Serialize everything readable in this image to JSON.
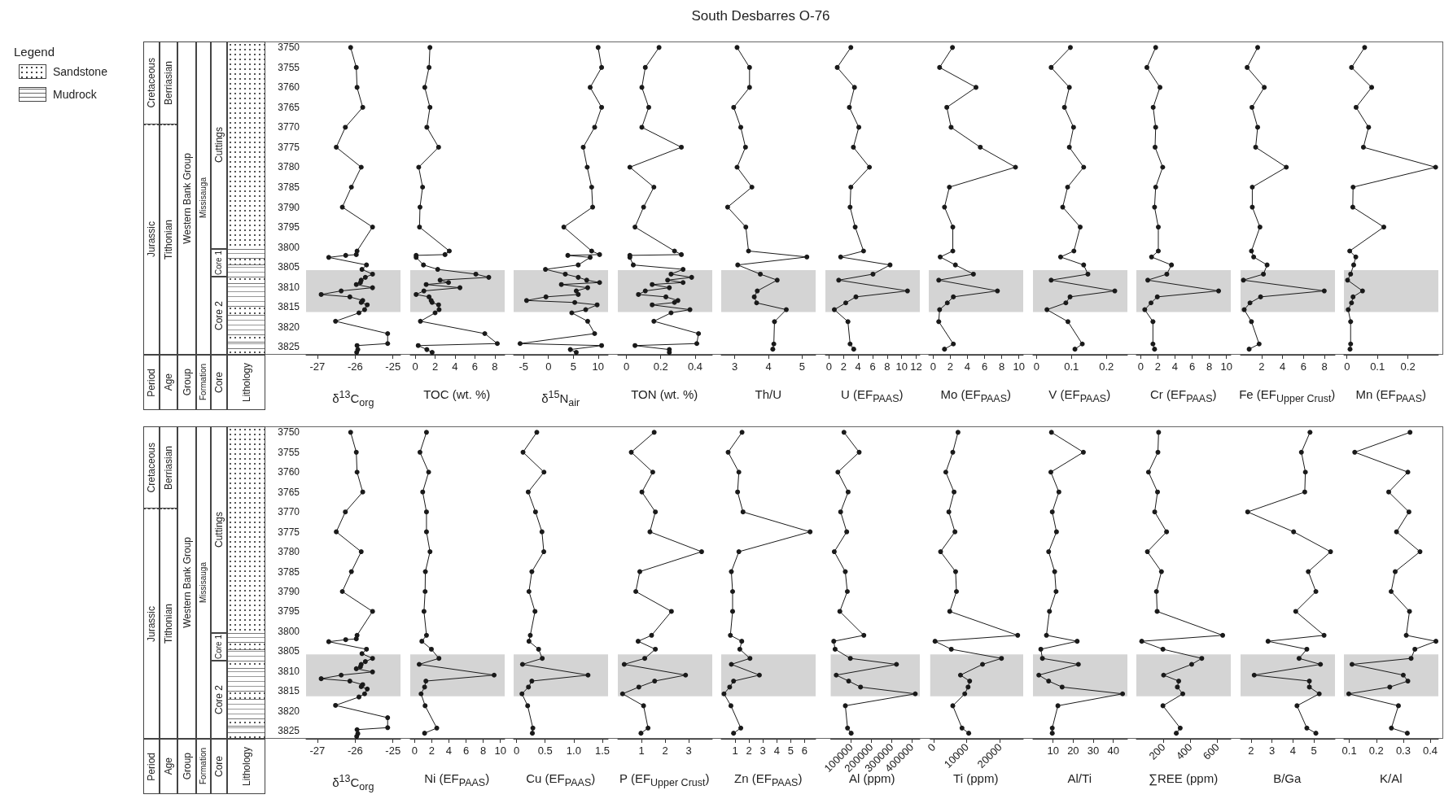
{
  "chart_data": [
    {
      "type": "other",
      "title": "South Desbarres O-76"
    },
    {
      "type": "other",
      "title": "Legend",
      "annotations": [
        "Sandstone",
        "Mudrock"
      ]
    },
    {
      "type": "other",
      "annotations": [
        "Period",
        "Age",
        "Group",
        "Formation",
        "Core",
        "Lithology",
        "Cretaceous",
        "Jurassic",
        "Berriasian",
        "Tithonian",
        "Western Bank Group",
        "Missisauga",
        "Cuttings",
        "Core 1",
        "Core 2"
      ]
    },
    {
      "type": "line",
      "xlabel": "δ$^{13}$C$_{org}$",
      "color": "#1a1a1a",
      "marker": "circle",
      "line_style": "solid",
      "xlim": [
        -27.3,
        -24.8
      ],
      "xticks": [
        -27,
        -26,
        -25
      ],
      "ylim": [
        3827,
        3748.5
      ],
      "yticks": [
        3750,
        3755,
        3760,
        3765,
        3770,
        3775,
        3780,
        3785,
        3790,
        3795,
        3800,
        3805,
        3810,
        3815,
        3820,
        3825
      ],
      "bands": [
        {
          "axis": "y",
          "from": 3805.8,
          "to": 3816.3,
          "color": "#d4d4d4"
        }
      ],
      "x": [
        -26.12,
        -25.97,
        -25.95,
        -25.8,
        -26.26,
        -26.5,
        -25.84,
        -26.1,
        -26.34,
        -25.54,
        -25.95,
        -25.97,
        -26.25,
        -26.7,
        -25.7,
        -25.82,
        -25.54,
        -25.73,
        -25.84,
        -25.86,
        -25.97,
        -25.54,
        -26.37,
        -26.9,
        -26.14,
        -25.8,
        -25.84,
        -25.68,
        -25.75,
        -25.9,
        -26.52,
        -25.14,
        -25.14,
        -25.95,
        -25.93,
        -25.96
      ],
      "values": [
        3750,
        3755,
        3760,
        3765,
        3770,
        3775,
        3780,
        3785,
        3790,
        3795,
        3801,
        3801.9,
        3802.1,
        3802.6,
        3804.5,
        3805.6,
        3806.8,
        3807.6,
        3808.3,
        3808.9,
        3809.4,
        3810.2,
        3811,
        3811.9,
        3812.5,
        3813.4,
        3813.9,
        3814.5,
        3815.7,
        3816.5,
        3818.6,
        3821.7,
        3824.2,
        3824.7,
        3825.7,
        3826.4
      ]
    },
    {
      "type": "line",
      "xlabel": "TOC (wt. %)",
      "color": "#1a1a1a",
      "marker": "circle",
      "line_style": "solid",
      "tick_labels": "x",
      "xlim": [
        -0.5,
        9
      ],
      "xticks": [
        0,
        2,
        4,
        6,
        8
      ],
      "ylim": [
        3827,
        3748.5
      ],
      "yticks": [
        3750,
        3755,
        3760,
        3765,
        3770,
        3775,
        3780,
        3785,
        3790,
        3795,
        3800,
        3805,
        3810,
        3815,
        3820,
        3825
      ],
      "bands": [
        {
          "axis": "y",
          "from": 3805.8,
          "to": 3816.3,
          "color": "#d4d4d4"
        }
      ],
      "x": [
        1.48,
        1.39,
        0.96,
        1.48,
        1.17,
        2.35,
        0.35,
        0.74,
        0.48,
        0.43,
        3.43,
        3.0,
        0.09,
        0.09,
        0.83,
        2.26,
        6.1,
        7.4,
        2.5,
        3.35,
        1.1,
        4.5,
        0.87,
        0.09,
        1.39,
        1.6,
        1.7,
        2.35,
        2.4,
        2.0,
        0.52,
        7.0,
        8.26,
        0.3,
        1.17,
        1.7
      ],
      "values": [
        3750,
        3755,
        3760,
        3765,
        3770,
        3775,
        3780,
        3785,
        3790,
        3795,
        3801,
        3801.9,
        3802.1,
        3802.6,
        3804.5,
        3805.6,
        3806.8,
        3807.6,
        3808.3,
        3808.9,
        3809.4,
        3810.2,
        3811,
        3811.9,
        3812.5,
        3813.4,
        3813.9,
        3814.5,
        3815.7,
        3816.5,
        3818.6,
        3821.7,
        3824.2,
        3824.7,
        3825.7,
        3826.4
      ]
    },
    {
      "type": "line",
      "xlabel": "δ$^{15}$N$_{air}$",
      "color": "#1a1a1a",
      "marker": "circle",
      "line_style": "solid",
      "tick_labels": "x",
      "xlim": [
        -7,
        12
      ],
      "xticks": [
        -5,
        0,
        5,
        10
      ],
      "ylim": [
        3827,
        3748.5
      ],
      "yticks": [
        3750,
        3755,
        3760,
        3765,
        3770,
        3775,
        3780,
        3785,
        3790,
        3795,
        3800,
        3805,
        3810,
        3815,
        3820,
        3825
      ],
      "bands": [
        {
          "axis": "y",
          "from": 3805.8,
          "to": 3816.3,
          "color": "#d4d4d4"
        }
      ],
      "x": [
        10.0,
        10.7,
        8.4,
        10.7,
        9.3,
        7.0,
        7.8,
        8.7,
        8.9,
        3.1,
        8.7,
        10.3,
        3.9,
        8.4,
        6.0,
        -0.6,
        3.4,
        6.0,
        7.7,
        10.3,
        2.6,
        7.9,
        5.6,
        6.0,
        -0.5,
        -4.4,
        5.3,
        9.8,
        7.5,
        4.7,
        7.9,
        9.3,
        -5.7,
        10.7,
        4.4,
        5.6
      ],
      "values": [
        3750,
        3755,
        3760,
        3765,
        3770,
        3775,
        3780,
        3785,
        3790,
        3795,
        3801,
        3801.9,
        3802.1,
        3802.6,
        3804.5,
        3805.6,
        3806.8,
        3807.6,
        3808.3,
        3808.9,
        3809.4,
        3810.2,
        3811,
        3811.9,
        3812.5,
        3813.4,
        3813.9,
        3814.5,
        3815.7,
        3816.5,
        3818.6,
        3821.7,
        3824.2,
        3824.7,
        3825.7,
        3826.4
      ]
    },
    {
      "type": "line",
      "xlabel": "TON (wt. %)",
      "color": "#1a1a1a",
      "marker": "circle",
      "line_style": "solid",
      "tick_labels": "x",
      "xlim": [
        -0.05,
        0.5
      ],
      "xticks": [
        0,
        0.2,
        0.4
      ],
      "ylim": [
        3827,
        3748.5
      ],
      "yticks": [
        3750,
        3755,
        3760,
        3765,
        3770,
        3775,
        3780,
        3785,
        3790,
        3795,
        3800,
        3805,
        3810,
        3815,
        3820,
        3825
      ],
      "bands": [
        {
          "axis": "y",
          "from": 3805.8,
          "to": 3816.3,
          "color": "#d4d4d4"
        }
      ],
      "x": [
        0.19,
        0.11,
        0.09,
        0.13,
        0.09,
        0.32,
        0.02,
        0.16,
        0.1,
        0.05,
        0.28,
        0.32,
        0.02,
        0.02,
        0.04,
        0.33,
        0.26,
        0.38,
        0.24,
        0.33,
        0.15,
        0.25,
        0.11,
        0.07,
        0.23,
        0.3,
        0.28,
        0.15,
        0.37,
        0.26,
        0.16,
        0.42,
        0.41,
        0.05,
        0.25,
        0.25
      ],
      "values": [
        3750,
        3755,
        3760,
        3765,
        3770,
        3775,
        3780,
        3785,
        3790,
        3795,
        3801,
        3801.9,
        3802.1,
        3802.6,
        3804.5,
        3805.6,
        3806.8,
        3807.6,
        3808.3,
        3808.9,
        3809.4,
        3810.2,
        3811,
        3811.9,
        3812.5,
        3813.4,
        3813.9,
        3814.5,
        3815.7,
        3816.5,
        3818.6,
        3821.7,
        3824.2,
        3824.7,
        3825.7,
        3826.4
      ]
    },
    {
      "type": "line",
      "xlabel": "Th/U",
      "color": "#1a1a1a",
      "marker": "circle",
      "line_style": "solid",
      "tick_labels": "x",
      "xlim": [
        2.6,
        5.4
      ],
      "xticks": [
        3,
        4,
        5
      ],
      "ylim": [
        3827,
        3748.5
      ],
      "yticks": [
        3750,
        3755,
        3760,
        3765,
        3770,
        3775,
        3780,
        3785,
        3790,
        3795,
        3800,
        3805,
        3810,
        3815,
        3820,
        3825
      ],
      "bands": [
        {
          "axis": "y",
          "from": 3805.8,
          "to": 3816.3,
          "color": "#d4d4d4"
        }
      ],
      "x": [
        3.07,
        3.44,
        3.44,
        2.97,
        3.18,
        3.32,
        3.07,
        3.51,
        2.79,
        3.33,
        3.41,
        5.14,
        3.09,
        3.76,
        4.26,
        3.67,
        3.58,
        3.65,
        4.53,
        4.18,
        4.16,
        4.13
      ],
      "values": [
        3750,
        3755,
        3760,
        3765,
        3770,
        3775,
        3780,
        3785,
        3790,
        3795,
        3801,
        3802.5,
        3804.5,
        3806.8,
        3808.3,
        3811,
        3812.5,
        3814,
        3815.7,
        3818.7,
        3824.3,
        3825.6
      ]
    },
    {
      "type": "line",
      "xlabel": "U (EF$_{PAAS}$)",
      "color": "#1a1a1a",
      "marker": "circle",
      "line_style": "solid",
      "tick_labels": "x",
      "xlim": [
        -0.5,
        12.5
      ],
      "xticks": [
        0,
        2,
        4,
        6,
        8,
        10,
        12
      ],
      "ylim": [
        3827,
        3748.5
      ],
      "yticks": [
        3750,
        3755,
        3760,
        3765,
        3770,
        3775,
        3780,
        3785,
        3790,
        3795,
        3800,
        3805,
        3810,
        3815,
        3820,
        3825
      ],
      "bands": [
        {
          "axis": "y",
          "from": 3805.8,
          "to": 3816.3,
          "color": "#d4d4d4"
        }
      ],
      "x": [
        3.0,
        1.13,
        3.5,
        2.8,
        4.1,
        3.35,
        5.56,
        3.0,
        2.9,
        3.6,
        4.75,
        1.6,
        8.4,
        6.05,
        1.33,
        10.8,
        3.7,
        2.3,
        0.73,
        2.6,
        2.9,
        3.4
      ],
      "values": [
        3750,
        3755,
        3760,
        3765,
        3770,
        3775,
        3780,
        3785,
        3790,
        3795,
        3801,
        3802.5,
        3804.5,
        3806.8,
        3808.3,
        3811,
        3812.5,
        3814,
        3815.7,
        3818.7,
        3824.3,
        3825.6
      ]
    },
    {
      "type": "line",
      "xlabel": "Mo (EF$_{PAAS}$)",
      "color": "#1a1a1a",
      "marker": "circle",
      "line_style": "solid",
      "tick_labels": "x",
      "xlim": [
        -0.5,
        10.5
      ],
      "xticks": [
        0,
        2,
        4,
        6,
        8,
        10
      ],
      "ylim": [
        3827,
        3748.5
      ],
      "yticks": [
        3750,
        3755,
        3760,
        3765,
        3770,
        3775,
        3780,
        3785,
        3790,
        3795,
        3800,
        3805,
        3810,
        3815,
        3820,
        3825
      ],
      "bands": [
        {
          "axis": "y",
          "from": 3805.8,
          "to": 3816.3,
          "color": "#d4d4d4"
        }
      ],
      "x": [
        2.26,
        0.76,
        5.0,
        1.6,
        2.1,
        5.5,
        9.6,
        1.9,
        1.33,
        2.3,
        2.3,
        0.83,
        2.6,
        4.7,
        0.66,
        7.5,
        2.36,
        1.66,
        0.76,
        0.66,
        2.36,
        1.33
      ],
      "values": [
        3750,
        3755,
        3760,
        3765,
        3770,
        3775,
        3780,
        3785,
        3790,
        3795,
        3801,
        3802.5,
        3804.5,
        3806.8,
        3808.3,
        3811,
        3812.5,
        3814,
        3815.7,
        3818.7,
        3824.3,
        3825.6
      ]
    },
    {
      "type": "line",
      "xlabel": "V (EF$_{PAAS}$)",
      "color": "#1a1a1a",
      "marker": "circle",
      "line_style": "solid",
      "tick_labels": "x",
      "xlim": [
        -0.01,
        0.26
      ],
      "xticks": [
        0,
        0.1,
        0.2
      ],
      "ylim": [
        3827,
        3748.5
      ],
      "yticks": [
        3750,
        3755,
        3760,
        3765,
        3770,
        3775,
        3780,
        3785,
        3790,
        3795,
        3800,
        3805,
        3810,
        3815,
        3820,
        3825
      ],
      "bands": [
        {
          "axis": "y",
          "from": 3805.8,
          "to": 3816.3,
          "color": "#d4d4d4"
        }
      ],
      "x": [
        0.097,
        0.042,
        0.094,
        0.08,
        0.106,
        0.094,
        0.135,
        0.089,
        0.075,
        0.125,
        0.107,
        0.069,
        0.135,
        0.147,
        0.042,
        0.224,
        0.096,
        0.084,
        0.03,
        0.09,
        0.131,
        0.11
      ],
      "values": [
        3750,
        3755,
        3760,
        3765,
        3770,
        3775,
        3780,
        3785,
        3790,
        3795,
        3801,
        3802.5,
        3804.5,
        3806.8,
        3808.3,
        3811,
        3812.5,
        3814,
        3815.7,
        3818.7,
        3824.3,
        3825.6
      ]
    },
    {
      "type": "line",
      "xlabel": "Cr (EF$_{PAAS}$)",
      "color": "#1a1a1a",
      "marker": "circle",
      "line_style": "solid",
      "tick_labels": "x",
      "xlim": [
        -0.5,
        10.5
      ],
      "xticks": [
        0,
        2,
        4,
        6,
        8,
        10
      ],
      "ylim": [
        3827,
        3748.5
      ],
      "yticks": [
        3750,
        3755,
        3760,
        3765,
        3770,
        3775,
        3780,
        3785,
        3790,
        3795,
        3800,
        3805,
        3810,
        3815,
        3820,
        3825
      ],
      "bands": [
        {
          "axis": "y",
          "from": 3805.8,
          "to": 3816.3,
          "color": "#d4d4d4"
        }
      ],
      "x": [
        1.75,
        0.73,
        2.25,
        1.46,
        1.75,
        1.68,
        2.57,
        1.75,
        1.62,
        2.06,
        2.06,
        1.27,
        3.59,
        3.05,
        0.83,
        9.08,
        1.94,
        1.21,
        0.48,
        1.43,
        1.43,
        1.62
      ],
      "values": [
        3750,
        3755,
        3760,
        3765,
        3770,
        3775,
        3780,
        3785,
        3790,
        3795,
        3801,
        3802.5,
        3804.5,
        3806.8,
        3808.3,
        3811,
        3812.5,
        3814,
        3815.7,
        3818.7,
        3824.3,
        3825.6
      ]
    },
    {
      "type": "line",
      "xlabel": "Fe (EF$_{Upper Crust}$)",
      "color": "#1a1a1a",
      "marker": "circle",
      "line_style": "solid",
      "tick_labels": "x",
      "xlim": [
        0,
        9
      ],
      "xticks": [
        2,
        4,
        6,
        8
      ],
      "ylim": [
        3827,
        3748.5
      ],
      "yticks": [
        3750,
        3755,
        3760,
        3765,
        3770,
        3775,
        3780,
        3785,
        3790,
        3795,
        3800,
        3805,
        3810,
        3815,
        3820,
        3825
      ],
      "bands": [
        {
          "axis": "y",
          "from": 3805.8,
          "to": 3816.3,
          "color": "#d4d4d4"
        }
      ],
      "x": [
        1.63,
        0.63,
        2.26,
        1.09,
        1.63,
        1.44,
        4.36,
        1.12,
        1.12,
        1.85,
        1.04,
        1.25,
        2.53,
        2.18,
        0.27,
        7.98,
        1.91,
        0.9,
        0.35,
        1.04,
        1.77,
        0.82
      ],
      "values": [
        3750,
        3755,
        3760,
        3765,
        3770,
        3775,
        3780,
        3785,
        3790,
        3795,
        3801,
        3802.5,
        3804.5,
        3806.8,
        3808.3,
        3811,
        3812.5,
        3814,
        3815.7,
        3818.7,
        3824.3,
        3825.6
      ]
    },
    {
      "type": "line",
      "xlabel": "Mn (EF$_{PAAS}$)",
      "color": "#1a1a1a",
      "marker": "circle",
      "line_style": "solid",
      "tick_labels": "x",
      "xlim": [
        -0.01,
        0.3
      ],
      "xticks": [
        0,
        0.1,
        0.2
      ],
      "ylim": [
        3827,
        3748.5
      ],
      "yticks": [
        3750,
        3755,
        3760,
        3765,
        3770,
        3775,
        3780,
        3785,
        3790,
        3795,
        3800,
        3805,
        3810,
        3815,
        3820,
        3825
      ],
      "bands": [
        {
          "axis": "y",
          "from": 3805.8,
          "to": 3816.3,
          "color": "#d4d4d4"
        }
      ],
      "x": [
        0.058,
        0.015,
        0.081,
        0.03,
        0.071,
        0.054,
        0.291,
        0.02,
        0.019,
        0.121,
        0.009,
        0.029,
        0.022,
        0.012,
        0.002,
        0.051,
        0.02,
        0.015,
        0.004,
        0.012,
        0.012,
        0.01
      ],
      "values": [
        3750,
        3755,
        3760,
        3765,
        3770,
        3775,
        3780,
        3785,
        3790,
        3795,
        3801,
        3802.5,
        3804.5,
        3806.8,
        3808.3,
        3811,
        3812.5,
        3814,
        3815.7,
        3818.7,
        3824.3,
        3825.6
      ]
    },
    {
      "type": "other",
      "annotations": [
        "Period",
        "Age",
        "Group",
        "Formation",
        "Core",
        "Lithology",
        "Cretaceous",
        "Jurassic",
        "Berriasian",
        "Tithonian",
        "Western Bank Group",
        "Missisauga",
        "Cuttings",
        "Core 1",
        "Core 2"
      ]
    },
    {
      "type": "line",
      "xlabel": "δ$^{13}$C$_{org}$",
      "color": "#1a1a1a",
      "marker": "circle",
      "line_style": "solid",
      "xlim": [
        -27.3,
        -24.8
      ],
      "xticks": [
        -27,
        -26,
        -25
      ],
      "ylim": [
        3827,
        3748.5
      ],
      "yticks": [
        3750,
        3755,
        3760,
        3765,
        3770,
        3775,
        3780,
        3785,
        3790,
        3795,
        3800,
        3805,
        3810,
        3815,
        3820,
        3825
      ],
      "bands": [
        {
          "axis": "y",
          "from": 3805.8,
          "to": 3816.3,
          "color": "#d4d4d4"
        }
      ],
      "x": [
        -26.12,
        -25.97,
        -25.95,
        -25.8,
        -26.26,
        -26.5,
        -25.84,
        -26.1,
        -26.34,
        -25.54,
        -25.95,
        -25.97,
        -26.25,
        -26.7,
        -25.7,
        -25.82,
        -25.54,
        -25.73,
        -25.84,
        -25.86,
        -25.97,
        -25.54,
        -26.37,
        -26.9,
        -26.14,
        -25.8,
        -25.84,
        -25.68,
        -25.75,
        -25.9,
        -26.52,
        -25.14,
        -25.14,
        -25.95,
        -25.93,
        -25.96
      ],
      "values": [
        3750,
        3755,
        3760,
        3765,
        3770,
        3775,
        3780,
        3785,
        3790,
        3795,
        3801,
        3801.9,
        3802.1,
        3802.6,
        3804.5,
        3805.6,
        3806.8,
        3807.6,
        3808.3,
        3808.9,
        3809.4,
        3810.2,
        3811,
        3811.9,
        3812.5,
        3813.4,
        3813.9,
        3814.5,
        3815.7,
        3816.5,
        3818.6,
        3821.7,
        3824.2,
        3824.7,
        3825.7,
        3826.4
      ]
    },
    {
      "type": "line",
      "xlabel": "Ni (EF$_{PAAS}$)",
      "color": "#1a1a1a",
      "marker": "circle",
      "line_style": "solid",
      "tick_labels": "x",
      "xlim": [
        -0.5,
        10.5
      ],
      "xticks": [
        0,
        2,
        4,
        6,
        8,
        10
      ],
      "ylim": [
        3827,
        3748.5
      ],
      "yticks": [
        3750,
        3755,
        3760,
        3765,
        3770,
        3775,
        3780,
        3785,
        3790,
        3795,
        3800,
        3805,
        3810,
        3815,
        3820,
        3825
      ],
      "bands": [
        {
          "axis": "y",
          "from": 3805.8,
          "to": 3816.3,
          "color": "#d4d4d4"
        }
      ],
      "x": [
        1.39,
        0.63,
        1.64,
        0.95,
        1.39,
        1.39,
        1.8,
        1.26,
        1.23,
        1.1,
        1.39,
        0.85,
        1.96,
        2.84,
        0.54,
        9.27,
        1.32,
        1.17,
        0.76,
        1.23,
        2.59,
        1.17
      ],
      "values": [
        3750,
        3755,
        3760,
        3765,
        3770,
        3775,
        3780,
        3785,
        3790,
        3795,
        3801,
        3802.5,
        3804.5,
        3806.8,
        3808.3,
        3811,
        3812.5,
        3814,
        3815.7,
        3818.7,
        3824.3,
        3825.6
      ]
    },
    {
      "type": "line",
      "xlabel": "Cu (EF$_{PAAS}$)",
      "color": "#1a1a1a",
      "marker": "circle",
      "line_style": "solid",
      "tick_labels": "x",
      "xlim": [
        -0.05,
        1.6
      ],
      "xticks": [
        0,
        0.5,
        {
          "value": 1,
          "label": "1.0"
        },
        1.5
      ],
      "ylim": [
        3827,
        3748.5
      ],
      "yticks": [
        3750,
        3755,
        3760,
        3765,
        3770,
        3775,
        3780,
        3785,
        3790,
        3795,
        3800,
        3805,
        3810,
        3815,
        3820,
        3825
      ],
      "bands": [
        {
          "axis": "y",
          "from": 3805.8,
          "to": 3816.3,
          "color": "#d4d4d4"
        }
      ],
      "x": [
        0.355,
        0.114,
        0.48,
        0.205,
        0.332,
        0.445,
        0.477,
        0.268,
        0.218,
        0.323,
        0.241,
        0.218,
        0.386,
        0.45,
        0.105,
        1.25,
        0.268,
        0.209,
        0.095,
        0.195,
        0.286,
        0.277
      ],
      "values": [
        3750,
        3755,
        3760,
        3765,
        3770,
        3775,
        3780,
        3785,
        3790,
        3795,
        3801,
        3802.5,
        3804.5,
        3806.8,
        3808.3,
        3811,
        3812.5,
        3814,
        3815.7,
        3818.7,
        3824.3,
        3825.6
      ]
    },
    {
      "type": "line",
      "xlabel": "P (EF$_{Upper Crust}$)",
      "color": "#1a1a1a",
      "marker": "circle",
      "line_style": "solid",
      "tick_labels": "x",
      "xlim": [
        0,
        4
      ],
      "xticks": [
        1,
        2,
        3
      ],
      "ylim": [
        3827,
        3748.5
      ],
      "yticks": [
        3750,
        3755,
        3760,
        3765,
        3770,
        3775,
        3780,
        3785,
        3790,
        3795,
        3800,
        3805,
        3810,
        3815,
        3820,
        3825
      ],
      "bands": [
        {
          "axis": "y",
          "from": 3805.8,
          "to": 3816.3,
          "color": "#d4d4d4"
        }
      ],
      "x": [
        1.54,
        0.57,
        1.48,
        1.02,
        1.59,
        1.36,
        3.55,
        0.93,
        0.76,
        2.27,
        1.43,
        0.86,
        1.59,
        1.14,
        0.27,
        2.87,
        1.56,
        0.89,
        0.2,
        1.09,
        1.28,
        0.98
      ],
      "values": [
        3750,
        3755,
        3760,
        3765,
        3770,
        3775,
        3780,
        3785,
        3790,
        3795,
        3801,
        3802.5,
        3804.5,
        3806.8,
        3808.3,
        3811,
        3812.5,
        3814,
        3815.7,
        3818.7,
        3824.3,
        3825.6
      ]
    },
    {
      "type": "line",
      "xlabel": "Zn (EF$_{PAAS}$)",
      "color": "#1a1a1a",
      "marker": "circle",
      "line_style": "solid",
      "tick_labels": "x",
      "xlim": [
        0,
        6.8
      ],
      "xticks": [
        1,
        2,
        3,
        4,
        5,
        6
      ],
      "ylim": [
        3827,
        3748.5
      ],
      "yticks": [
        3750,
        3755,
        3760,
        3765,
        3770,
        3775,
        3780,
        3785,
        3790,
        3795,
        3800,
        3805,
        3810,
        3815,
        3820,
        3825
      ],
      "bands": [
        {
          "axis": "y",
          "from": 3805.8,
          "to": 3816.3,
          "color": "#d4d4d4"
        }
      ],
      "x": [
        1.5,
        0.5,
        1.27,
        1.18,
        1.57,
        6.4,
        1.27,
        0.73,
        0.82,
        0.82,
        0.66,
        1.48,
        1.34,
        2.07,
        0.73,
        2.75,
        0.89,
        0.61,
        0.2,
        0.7,
        1.41,
        0.89
      ],
      "values": [
        3750,
        3755,
        3760,
        3765,
        3770,
        3775,
        3780,
        3785,
        3790,
        3795,
        3801,
        3802.5,
        3804.5,
        3806.8,
        3808.3,
        3811,
        3812.5,
        3814,
        3815.7,
        3818.7,
        3824.3,
        3825.6
      ]
    },
    {
      "type": "line",
      "xlabel": "Al (ppm)",
      "color": "#1a1a1a",
      "marker": "circle",
      "line_style": "solid",
      "tick_labels": "x",
      "xlim": [
        0,
        440000
      ],
      "xticks": [
        100000,
        200000,
        300000,
        400000
      ],
      "ylim": [
        3827,
        3748.5
      ],
      "yticks": [
        3750,
        3755,
        3760,
        3765,
        3770,
        3775,
        3780,
        3785,
        3790,
        3795,
        3800,
        3805,
        3810,
        3815,
        3820,
        3825
      ],
      "bands": [
        {
          "axis": "y",
          "from": 3805.8,
          "to": 3816.3,
          "color": "#d4d4d4"
        }
      ],
      "x": [
        65500,
        140500,
        35500,
        86000,
        49000,
        79000,
        17700,
        72000,
        82000,
        45000,
        163700,
        15000,
        21800,
        96900,
        324700,
        27300,
        88700,
        147300,
        417500,
        72300,
        83200,
        101000
      ],
      "values": [
        3750,
        3755,
        3760,
        3765,
        3770,
        3775,
        3780,
        3785,
        3790,
        3795,
        3801,
        3802.5,
        3804.5,
        3806.8,
        3808.3,
        3811,
        3812.5,
        3814,
        3815.7,
        3818.7,
        3824.3,
        3825.6
      ]
    },
    {
      "type": "line",
      "xlabel": "Ti (ppm)",
      "color": "#1a1a1a",
      "marker": "circle",
      "line_style": "solid",
      "tick_labels": "x",
      "xlim": [
        -1000,
        27000
      ],
      "xticks": [
        0,
        10000,
        20000
      ],
      "ylim": [
        3827,
        3748.5
      ],
      "yticks": [
        3750,
        3755,
        3760,
        3765,
        3770,
        3775,
        3780,
        3785,
        3790,
        3795,
        3800,
        3805,
        3810,
        3815,
        3820,
        3825
      ],
      "bands": [
        {
          "axis": "y",
          "from": 3805.8,
          "to": 3816.3,
          "color": "#d4d4d4"
        }
      ],
      "x": [
        7370,
        5800,
        3690,
        6180,
        4610,
        6450,
        2120,
        6640,
        6910,
        4880,
        25350,
        460,
        5350,
        20460,
        14750,
        8110,
        10880,
        10410,
        9400,
        5800,
        8570,
        10600
      ],
      "values": [
        3750,
        3755,
        3760,
        3765,
        3770,
        3775,
        3780,
        3785,
        3790,
        3795,
        3801,
        3802.5,
        3804.5,
        3806.8,
        3808.3,
        3811,
        3812.5,
        3814,
        3815.7,
        3818.7,
        3824.3,
        3825.6
      ]
    },
    {
      "type": "line",
      "xlabel": "Al/Ti",
      "color": "#1a1a1a",
      "marker": "circle",
      "line_style": "solid",
      "tick_labels": "x",
      "xlim": [
        0,
        47
      ],
      "xticks": [
        10,
        20,
        30,
        40
      ],
      "ylim": [
        3827,
        3748.5
      ],
      "yticks": [
        3750,
        3755,
        3760,
        3765,
        3770,
        3775,
        3780,
        3785,
        3790,
        3795,
        3800,
        3805,
        3810,
        3815,
        3820,
        3825
      ],
      "bands": [
        {
          "axis": "y",
          "from": 3805.8,
          "to": 3816.3,
          "color": "#d4d4d4"
        }
      ],
      "x": [
        9.2,
        25.1,
        8.9,
        12.9,
        9.6,
        11.7,
        7.8,
        10.8,
        11.5,
        8.2,
        6.7,
        22.0,
        3.9,
        4.7,
        22.6,
        2.9,
        7.8,
        14.5,
        44.6,
        12.4,
        9.6,
        9.6
      ],
      "values": [
        3750,
        3755,
        3760,
        3765,
        3770,
        3775,
        3780,
        3785,
        3790,
        3795,
        3801,
        3802.5,
        3804.5,
        3806.8,
        3808.3,
        3811,
        3812.5,
        3814,
        3815.7,
        3818.7,
        3824.3,
        3825.6
      ]
    },
    {
      "type": "line",
      "xlabel": "∑REE (ppm)",
      "color": "#1a1a1a",
      "marker": "circle",
      "line_style": "solid",
      "tick_labels": "x",
      "xlim": [
        0,
        700
      ],
      "xticks": [
        200,
        400,
        600
      ],
      "ylim": [
        3827,
        3748.5
      ],
      "yticks": [
        3750,
        3755,
        3760,
        3765,
        3770,
        3775,
        3780,
        3785,
        3790,
        3795,
        3800,
        3805,
        3810,
        3815,
        3820,
        3825
      ],
      "bands": [
        {
          "axis": "y",
          "from": 3805.8,
          "to": 3816.3,
          "color": "#d4d4d4"
        }
      ],
      "x": [
        165,
        160,
        90,
        157,
        136,
        224,
        82,
        186,
        149,
        154,
        640,
        40,
        197,
        485,
        410,
        202,
        314,
        304,
        344,
        197,
        325,
        296
      ],
      "values": [
        3750,
        3755,
        3760,
        3765,
        3770,
        3775,
        3780,
        3785,
        3790,
        3795,
        3801,
        3802.5,
        3804.5,
        3806.8,
        3808.3,
        3811,
        3812.5,
        3814,
        3815.7,
        3818.7,
        3824.3,
        3825.6
      ]
    },
    {
      "type": "line",
      "xlabel": "B/Ga",
      "color": "#1a1a1a",
      "marker": "circle",
      "line_style": "solid",
      "tick_labels": "x",
      "xlim": [
        1.5,
        6
      ],
      "xticks": [
        2,
        3,
        4,
        5
      ],
      "ylim": [
        3827,
        3748.5
      ],
      "yticks": [
        3750,
        3755,
        3760,
        3765,
        3770,
        3775,
        3780,
        3785,
        3790,
        3795,
        3800,
        3805,
        3810,
        3815,
        3820,
        3825
      ],
      "bands": [
        {
          "axis": "y",
          "from": 3805.8,
          "to": 3816.3,
          "color": "#d4d4d4"
        }
      ],
      "x": [
        4.81,
        4.4,
        4.59,
        4.56,
        1.84,
        4.03,
        5.79,
        4.73,
        5.09,
        4.13,
        5.48,
        2.81,
        4.66,
        4.29,
        5.31,
        2.15,
        4.78,
        4.78,
        5.25,
        4.19,
        4.66,
        5.09
      ],
      "values": [
        3750,
        3755,
        3760,
        3765,
        3770,
        3775,
        3780,
        3785,
        3790,
        3795,
        3801,
        3802.5,
        3804.5,
        3806.8,
        3808.3,
        3811,
        3812.5,
        3814,
        3815.7,
        3818.7,
        3824.3,
        3825.6
      ]
    },
    {
      "type": "line",
      "xlabel": "K/Al",
      "color": "#1a1a1a",
      "marker": "circle",
      "line_style": "solid",
      "tick_labels": "x",
      "xlim": [
        0.08,
        0.43
      ],
      "xticks": [
        0.1,
        0.2,
        0.3,
        0.4
      ],
      "ylim": [
        3827,
        3748.5
      ],
      "yticks": [
        3750,
        3755,
        3760,
        3765,
        3770,
        3775,
        3780,
        3785,
        3790,
        3795,
        3800,
        3805,
        3810,
        3815,
        3820,
        3825
      ],
      "bands": [
        {
          "axis": "y",
          "from": 3805.8,
          "to": 3816.3,
          "color": "#d4d4d4"
        }
      ],
      "x": [
        0.325,
        0.12,
        0.317,
        0.246,
        0.321,
        0.275,
        0.362,
        0.27,
        0.255,
        0.323,
        0.311,
        0.421,
        0.343,
        0.329,
        0.11,
        0.3,
        0.317,
        0.25,
        0.098,
        0.282,
        0.256,
        0.315
      ],
      "values": [
        3750,
        3755,
        3760,
        3765,
        3770,
        3775,
        3780,
        3785,
        3790,
        3795,
        3801,
        3802.5,
        3804.5,
        3806.8,
        3808.3,
        3811,
        3812.5,
        3814,
        3815.7,
        3818.7,
        3824.3,
        3825.6
      ]
    }
  ]
}
